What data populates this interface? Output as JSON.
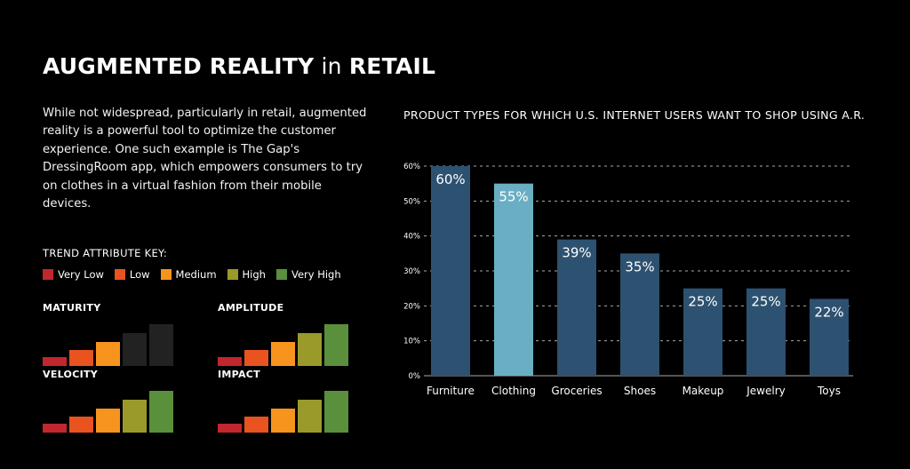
{
  "title": {
    "bold1": "AUGMENTED REALITY",
    "normal": "in",
    "bold2": "RETAIL"
  },
  "intro": "While not widespread, particularly in retail, augmented reality is a powerful tool to optimize the customer experience. One such example is The Gap's DressingRoom app, which empowers consumers to try on clothes in a virtual fashion from their mobile devices.",
  "key": {
    "title": "TREND ATTRIBUTE KEY:",
    "levels": [
      {
        "label": "Very Low",
        "color": "#c1272d"
      },
      {
        "label": "Low",
        "color": "#e8531f"
      },
      {
        "label": "Medium",
        "color": "#f7941e"
      },
      {
        "label": "High",
        "color": "#9a9a2a"
      },
      {
        "label": "Very High",
        "color": "#5a8f3c"
      }
    ],
    "inactive_color": "#222222"
  },
  "attributes": [
    {
      "name": "MATURITY",
      "level": 2
    },
    {
      "name": "AMPLITUDE",
      "level": 4
    },
    {
      "name": "VELOCITY",
      "level": 4
    },
    {
      "name": "IMPACT",
      "level": 4
    }
  ],
  "chart_data": {
    "type": "bar",
    "title": "PRODUCT TYPES FOR WHICH U.S. INTERNET USERS WANT TO SHOP USING A.R.",
    "categories": [
      "Furniture",
      "Clothing",
      "Groceries",
      "Shoes",
      "Makeup",
      "Jewelry",
      "Toys"
    ],
    "values": [
      60,
      55,
      39,
      35,
      25,
      25,
      22
    ],
    "data_labels": [
      "60%",
      "55%",
      "39%",
      "35%",
      "25%",
      "25%",
      "22%"
    ],
    "yticks": [
      "0%",
      "10%",
      "20%",
      "30%",
      "40%",
      "50%",
      "60%"
    ],
    "ylim": [
      0,
      60
    ],
    "grid": true,
    "colors": {
      "bar": "#2d5170",
      "highlight": "#6aaec4",
      "grid": "#aaaaaa"
    },
    "highlight_index": 1
  }
}
